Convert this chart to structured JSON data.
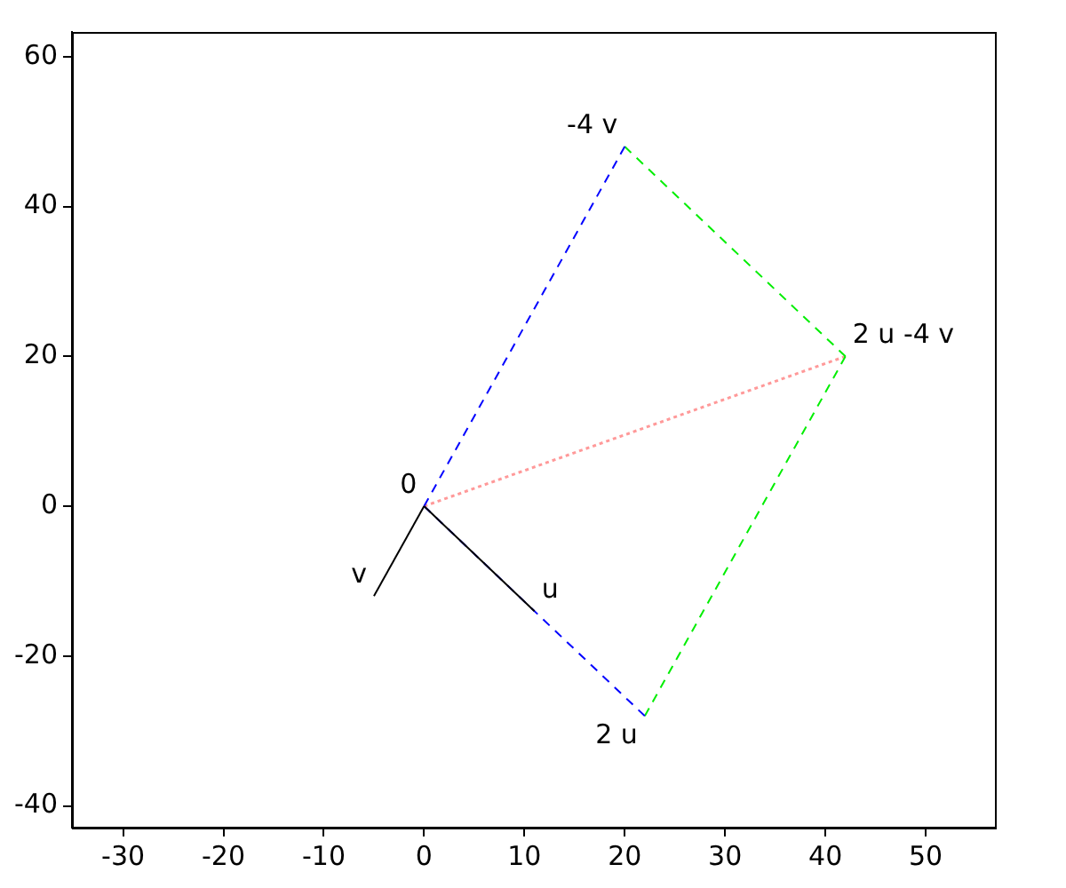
{
  "chart_data": {
    "type": "line",
    "series": [
      {
        "color": "#000000",
        "x": [
          0,
          11
        ],
        "values": [
          0,
          -14
        ],
        "line_style": "solid"
      },
      {
        "color": "#000000",
        "x": [
          0,
          -5
        ],
        "values": [
          0,
          -12
        ],
        "line_style": "solid"
      },
      {
        "color": "#0000ff",
        "x": [
          0,
          22
        ],
        "values": [
          0,
          -28
        ],
        "line_style": "dashed"
      },
      {
        "color": "#0000ff",
        "x": [
          0,
          20
        ],
        "values": [
          0,
          48
        ],
        "line_style": "dashed"
      },
      {
        "color": "#00ee00",
        "x": [
          22,
          42
        ],
        "values": [
          -28,
          20
        ],
        "line_style": "dashed"
      },
      {
        "color": "#00ee00",
        "x": [
          20,
          42
        ],
        "values": [
          48,
          20
        ],
        "line_style": "dashed"
      },
      {
        "color": "#ff9999",
        "x": [
          0,
          42
        ],
        "values": [
          0,
          20
        ],
        "line_style": "dotted"
      }
    ],
    "annotations": [
      {
        "text": "0",
        "x": 0,
        "y": 0
      },
      {
        "text": "u",
        "x": 11,
        "y": -14
      },
      {
        "text": "v",
        "x": -5,
        "y": -12
      },
      {
        "text": "2 u",
        "x": 22,
        "y": -28
      },
      {
        "text": "-4 v",
        "x": 20,
        "y": 48
      },
      {
        "text": "2 u -4 v",
        "x": 42,
        "y": 20
      }
    ],
    "xlim": [
      -35.1,
      56.9
    ],
    "xticks": [
      -30,
      -20,
      -10,
      0,
      10,
      20,
      30,
      40,
      50
    ],
    "ylim": [
      -42.9,
      63.3
    ],
    "yticks": [
      -40,
      -20,
      0,
      20,
      40,
      60
    ],
    "grid": false,
    "legend": false,
    "marker": "none"
  }
}
